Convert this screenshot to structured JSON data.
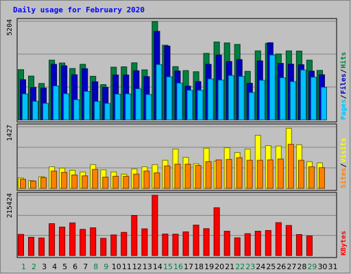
{
  "chart_data": {
    "type": "bar",
    "title": "Daily usage for February 2020",
    "days": [
      "1",
      "2",
      "3",
      "4",
      "5",
      "6",
      "7",
      "8",
      "9",
      "10",
      "11",
      "12",
      "13",
      "14",
      "15",
      "16",
      "17",
      "18",
      "19",
      "20",
      "21",
      "22",
      "23",
      "24",
      "25",
      "26",
      "27",
      "28",
      "29",
      "30",
      "31"
    ],
    "weekend_days": [
      "1",
      "2",
      "8",
      "9",
      "15",
      "16",
      "22",
      "23",
      "29"
    ],
    "panels": [
      {
        "name": "hits-files-pages",
        "ymax_label": "5204",
        "ymax": 5204,
        "side_labels": [
          {
            "text": "Pages",
            "color": "#00c0ff"
          },
          {
            "text": "Files",
            "color": "#0000c0"
          },
          {
            "text": "Hits",
            "color": "#008040"
          }
        ],
        "series": [
          {
            "name": "Hits",
            "color": "#008040",
            "values": [
              2650,
              2310,
              1920,
              3150,
              3000,
              2710,
              2930,
              2300,
              1860,
              2780,
              2800,
              3010,
              2640,
              5190,
              3940,
              2810,
              2600,
              2540,
              3510,
              4110,
              4060,
              3980,
              2560,
              3640,
              4040,
              3480,
              3640,
              3630,
              3150,
              2610
            ]
          },
          {
            "name": "Files",
            "color": "#0000c0",
            "values": [
              2120,
              1710,
              1680,
              2930,
              2850,
              2380,
              2700,
              2010,
              1710,
              2370,
              2370,
              2590,
              2280,
              4670,
              3890,
              2580,
              1780,
              2020,
              2930,
              3420,
              3080,
              3180,
              1930,
              3110,
              4070,
              2980,
              2940,
              2910,
              2570,
              2380
            ]
          },
          {
            "name": "Pages",
            "color": "#00c0ff",
            "values": [
              1370,
              980,
              870,
              1790,
              1380,
              1060,
              1500,
              970,
              870,
              1360,
              1370,
              1640,
              1340,
              2920,
              2270,
              1940,
              1560,
              1560,
              2160,
              2100,
              2340,
              2290,
              1440,
              2090,
              3420,
              2220,
              2020,
              2630,
              2250,
              1720
            ]
          }
        ]
      },
      {
        "name": "visits-sites",
        "ymax_label": "1427",
        "ymax": 1427,
        "side_labels": [
          {
            "text": "Sites",
            "color": "#ff8000"
          },
          {
            "text": "Visits",
            "color": "#ffff00"
          }
        ],
        "series": [
          {
            "name": "Visits",
            "color": "#ffff00",
            "values": [
              240,
              180,
              270,
              500,
              470,
              420,
              380,
              550,
              430,
              380,
              330,
              450,
              500,
              550,
              650,
              910,
              720,
              570,
              930,
              630,
              940,
              830,
              910,
              1230,
              990,
              980,
              1390,
              1010,
              620,
              590
            ]
          },
          {
            "name": "Sites",
            "color": "#ff8000",
            "values": [
              210,
              170,
              250,
              400,
              370,
              310,
              290,
              440,
              260,
              280,
              280,
              330,
              400,
              360,
              520,
              560,
              560,
              530,
              620,
              660,
              670,
              710,
              650,
              650,
              660,
              680,
              1020,
              650,
              500,
              480
            ]
          }
        ]
      },
      {
        "name": "kbytes",
        "ymax_label": "215424",
        "ymax": 215424,
        "side_labels": [
          {
            "text": "KBytes",
            "color": "#ff0000"
          }
        ],
        "series": [
          {
            "name": "KBytes",
            "color": "#ff0000",
            "values": [
              75400,
              65100,
              62700,
              113800,
              101700,
              116500,
              93400,
              99100,
              61300,
              73600,
              82700,
              143200,
              95400,
              215400,
              76600,
              76200,
              84500,
              108700,
              95900,
              170800,
              86700,
              63200,
              78000,
              86900,
              89400,
              117400,
              107300,
              74900,
              69900,
              0
            ]
          }
        ]
      }
    ]
  }
}
